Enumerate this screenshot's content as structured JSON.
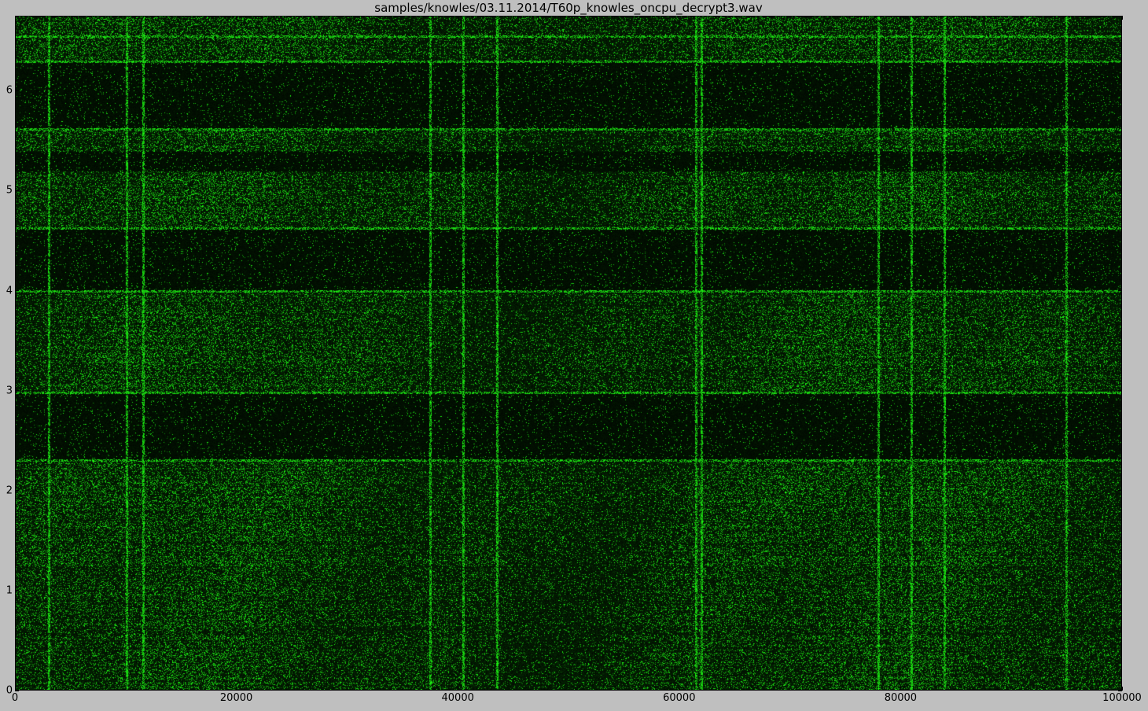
{
  "chart_data": {
    "type": "heatmap",
    "title": "samples/knowles/03.11.2014/T60p_knowles_oncpu_decrypt3.wav",
    "xlabel": "",
    "ylabel": "",
    "xlim": [
      0,
      100000
    ],
    "ylim": [
      0,
      6.75
    ],
    "xticks": [
      "0",
      "20000",
      "40000",
      "60000",
      "80000",
      "100000"
    ],
    "xtick_values": [
      0,
      20000,
      40000,
      60000,
      80000,
      100000
    ],
    "yticks": [
      "0",
      "1",
      "2",
      "3",
      "4",
      "5",
      "6"
    ],
    "ytick_values": [
      0,
      1,
      2,
      3,
      4,
      5,
      6
    ],
    "colormap": {
      "low": "#000000",
      "high": "#00ff00"
    },
    "dark_bands_y": [
      [
        2.3,
        2.98
      ],
      [
        4.0,
        4.63
      ],
      [
        5.2,
        5.4
      ],
      [
        5.62,
        6.3
      ]
    ],
    "vertical_lines_x": [
      3000,
      10000,
      11500,
      37500,
      40500,
      43500,
      61500,
      62000,
      78000,
      81000,
      84000,
      95000
    ],
    "bright_horizontal_y": [
      2.3,
      2.98,
      4.0,
      4.63,
      5.62,
      6.3,
      6.55
    ]
  }
}
